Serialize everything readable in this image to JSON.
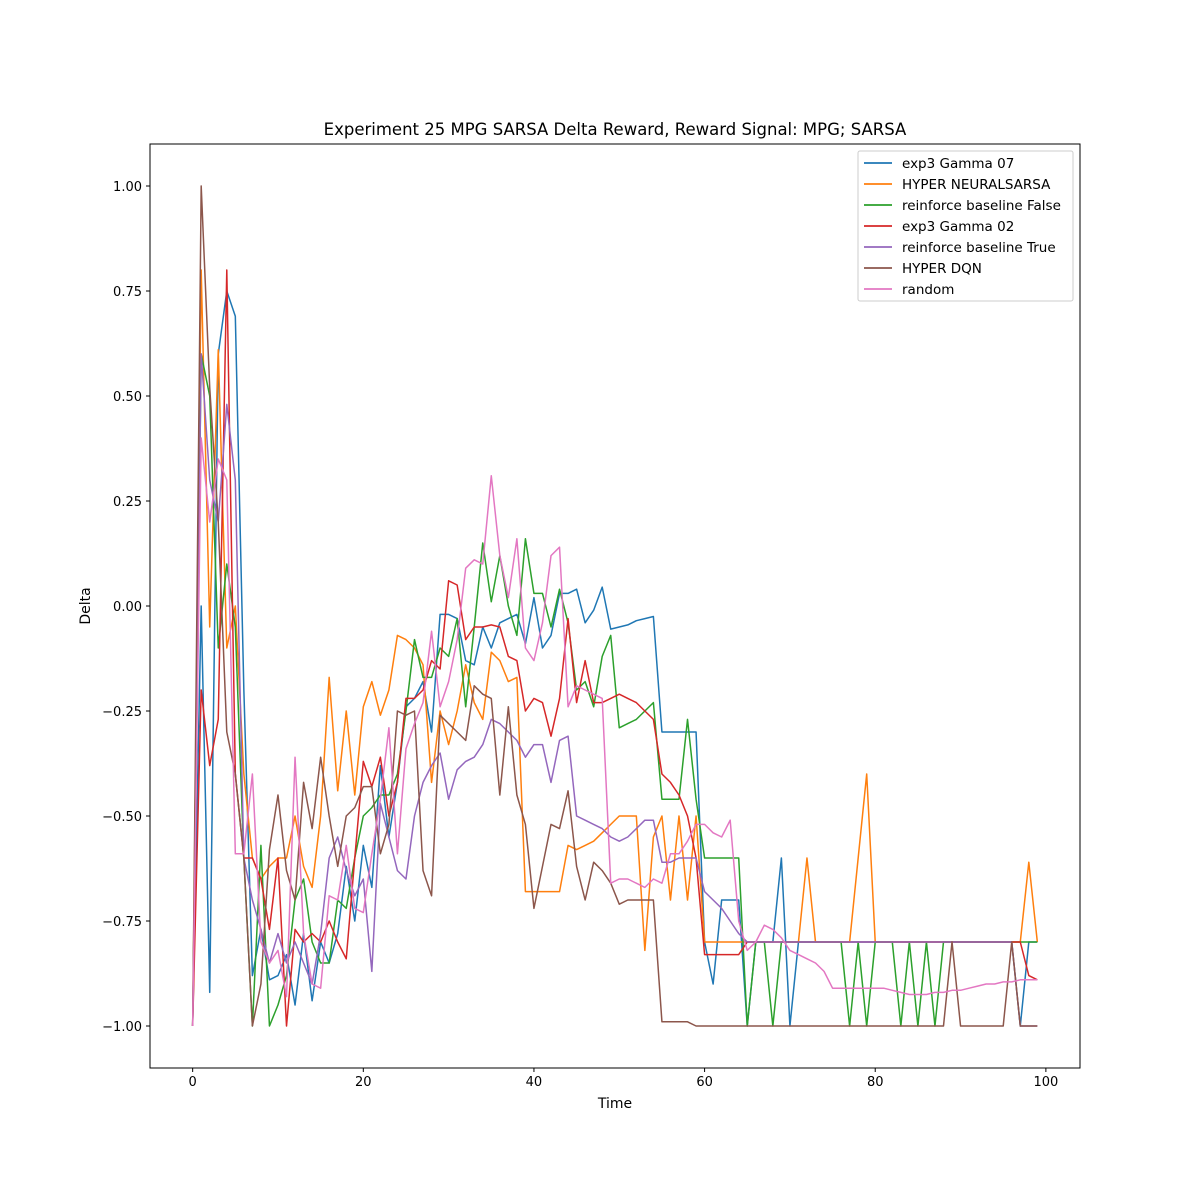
{
  "chart_data": {
    "type": "line",
    "title": "Experiment 25 MPG SARSA Delta Reward,  Reward Signal: MPG; SARSA",
    "xlabel": "Time",
    "ylabel": "Delta",
    "xlim": [
      -5,
      104
    ],
    "ylim": [
      -1.1,
      1.1
    ],
    "xticks": [
      0,
      20,
      40,
      60,
      80,
      100
    ],
    "xtick_labels": [
      "0",
      "20",
      "40",
      "60",
      "80",
      "100"
    ],
    "yticks": [
      -1.0,
      -0.75,
      -0.5,
      -0.25,
      0.0,
      0.25,
      0.5,
      0.75,
      1.0
    ],
    "ytick_labels": [
      "−1.00",
      "−0.75",
      "−0.50",
      "−0.25",
      "0.00",
      "0.25",
      "0.50",
      "0.75",
      "1.00"
    ],
    "grid": false,
    "legend_position": "top-right",
    "series": [
      {
        "name": "exp3 Gamma 07",
        "color": "#1f77b4",
        "values": [
          -1.0,
          0.0,
          -0.92,
          0.6,
          0.75,
          0.69,
          -0.2,
          -0.88,
          -0.77,
          -0.89,
          -0.88,
          -0.83,
          -0.95,
          -0.78,
          -0.94,
          -0.8,
          -0.85,
          -0.78,
          -0.62,
          -0.75,
          -0.57,
          -0.67,
          -0.38,
          -0.55,
          -0.42,
          -0.24,
          -0.22,
          -0.18,
          -0.3,
          -0.02,
          -0.02,
          -0.03,
          -0.13,
          -0.14,
          -0.05,
          -0.1,
          -0.04,
          -0.03,
          -0.02,
          -0.09,
          0.02,
          -0.1,
          -0.07,
          0.03,
          0.03,
          0.04,
          -0.04,
          -0.01,
          0.045,
          -0.055,
          -0.05,
          -0.045,
          -0.035,
          -0.03,
          -0.025,
          -0.3,
          -0.3,
          -0.3,
          -0.3,
          -0.3,
          -0.8,
          -0.9,
          -0.7,
          -0.7,
          -0.7,
          -1.0,
          -0.8,
          -0.8,
          -0.8,
          -0.6,
          -1.0,
          -0.8,
          -0.8,
          -0.8,
          -0.8,
          -0.8,
          -0.8,
          -0.8,
          -0.8,
          -0.8,
          -0.8,
          -0.8,
          -0.8,
          -0.8,
          -0.8,
          -0.8,
          -0.8,
          -0.8,
          -0.8,
          -0.8,
          -0.8,
          -0.8,
          -0.8,
          -0.8,
          -0.8,
          -0.8,
          -0.8,
          -1.0,
          -0.8,
          -0.8
        ]
      },
      {
        "name": "HYPER NEURALSARSA",
        "color": "#ff7f0e",
        "values": [
          -1.0,
          0.8,
          -0.05,
          0.61,
          -0.1,
          0.0,
          -0.4,
          -0.6,
          -0.65,
          -0.62,
          -0.6,
          -0.6,
          -0.5,
          -0.62,
          -0.67,
          -0.5,
          -0.17,
          -0.44,
          -0.25,
          -0.45,
          -0.24,
          -0.18,
          -0.26,
          -0.2,
          -0.07,
          -0.08,
          -0.1,
          -0.14,
          -0.42,
          -0.25,
          -0.33,
          -0.25,
          -0.14,
          -0.23,
          -0.27,
          -0.11,
          -0.13,
          -0.18,
          -0.17,
          -0.68,
          -0.68,
          -0.68,
          -0.68,
          -0.68,
          -0.57,
          -0.58,
          -0.57,
          -0.56,
          -0.54,
          -0.52,
          -0.5,
          -0.5,
          -0.5,
          -0.82,
          -0.55,
          -0.5,
          -0.7,
          -0.5,
          -0.7,
          -0.5,
          -0.8,
          -0.8,
          -0.8,
          -0.8,
          -0.8,
          -0.8,
          -0.8,
          -0.8,
          -0.8,
          -0.8,
          -0.8,
          -0.8,
          -0.6,
          -0.8,
          -0.8,
          -0.8,
          -0.8,
          -0.8,
          -0.6,
          -0.4,
          -0.8,
          -0.8,
          -0.8,
          -0.8,
          -0.8,
          -0.8,
          -0.8,
          -0.8,
          -0.8,
          -0.8,
          -0.8,
          -0.8,
          -0.8,
          -0.8,
          -0.8,
          -0.8,
          -0.8,
          -0.8,
          -0.61,
          -0.8
        ]
      },
      {
        "name": "reinforce baseline False",
        "color": "#2ca02c",
        "values": [
          -1.0,
          0.6,
          0.5,
          -0.1,
          0.1,
          -0.05,
          -0.6,
          -1.0,
          -0.57,
          -1.0,
          -0.95,
          -0.88,
          -0.7,
          -0.65,
          -0.8,
          -0.85,
          -0.85,
          -0.7,
          -0.72,
          -0.6,
          -0.5,
          -0.48,
          -0.45,
          -0.45,
          -0.4,
          -0.25,
          -0.08,
          -0.17,
          -0.17,
          -0.1,
          -0.12,
          -0.03,
          -0.24,
          -0.05,
          0.15,
          0.01,
          0.12,
          0.0,
          -0.07,
          0.16,
          0.03,
          0.03,
          -0.05,
          0.04,
          -0.04,
          -0.2,
          -0.18,
          -0.24,
          -0.12,
          -0.07,
          -0.29,
          -0.28,
          -0.27,
          -0.25,
          -0.23,
          -0.46,
          -0.46,
          -0.46,
          -0.27,
          -0.46,
          -0.6,
          -0.6,
          -0.6,
          -0.6,
          -0.6,
          -1.0,
          -0.8,
          -0.8,
          -1.0,
          -0.8,
          -0.8,
          -0.8,
          -0.8,
          -0.8,
          -0.8,
          -0.8,
          -0.8,
          -1.0,
          -0.8,
          -1.0,
          -0.8,
          -0.8,
          -0.8,
          -1.0,
          -0.8,
          -1.0,
          -0.8,
          -1.0,
          -0.8,
          -0.8,
          -0.8,
          -0.8,
          -0.8,
          -0.8,
          -0.8,
          -0.8,
          -0.8,
          -0.8,
          -0.8,
          -0.8
        ]
      },
      {
        "name": "exp3 Gamma 02",
        "color": "#d62728",
        "values": [
          -1.0,
          -0.2,
          -0.38,
          -0.27,
          0.8,
          -0.4,
          -0.6,
          -0.6,
          -0.65,
          -0.77,
          -0.6,
          -1.0,
          -0.77,
          -0.8,
          -0.78,
          -0.8,
          -0.75,
          -0.8,
          -0.84,
          -0.6,
          -0.37,
          -0.43,
          -0.36,
          -0.5,
          -0.42,
          -0.22,
          -0.22,
          -0.2,
          -0.13,
          -0.15,
          0.06,
          0.05,
          -0.08,
          -0.05,
          -0.05,
          -0.045,
          -0.05,
          -0.12,
          -0.13,
          -0.25,
          -0.22,
          -0.23,
          -0.31,
          -0.22,
          -0.03,
          -0.23,
          -0.13,
          -0.23,
          -0.23,
          -0.22,
          -0.21,
          -0.22,
          -0.23,
          -0.25,
          -0.27,
          -0.4,
          -0.42,
          -0.45,
          -0.5,
          -0.6,
          -0.83,
          -0.83,
          -0.83,
          -0.83,
          -0.83,
          -0.8,
          -0.8,
          -0.8,
          -0.8,
          -0.8,
          -0.8,
          -0.8,
          -0.8,
          -0.8,
          -0.8,
          -0.8,
          -0.8,
          -0.8,
          -0.8,
          -0.8,
          -0.8,
          -0.8,
          -0.8,
          -0.8,
          -0.8,
          -0.8,
          -0.8,
          -0.8,
          -0.8,
          -0.8,
          -0.8,
          -0.8,
          -0.8,
          -0.8,
          -0.8,
          -0.8,
          -0.8,
          -0.8,
          -0.88,
          -0.89
        ]
      },
      {
        "name": "reinforce baseline True",
        "color": "#9467bd",
        "values": [
          -1.0,
          0.6,
          0.3,
          0.2,
          0.48,
          0.3,
          -0.6,
          -0.7,
          -0.77,
          -0.85,
          -0.78,
          -0.85,
          -0.8,
          -0.85,
          -0.9,
          -0.78,
          -0.6,
          -0.55,
          -0.63,
          -0.69,
          -0.65,
          -0.87,
          -0.47,
          -0.55,
          -0.63,
          -0.65,
          -0.5,
          -0.42,
          -0.38,
          -0.35,
          -0.46,
          -0.39,
          -0.37,
          -0.36,
          -0.33,
          -0.27,
          -0.28,
          -0.3,
          -0.32,
          -0.36,
          -0.33,
          -0.33,
          -0.42,
          -0.32,
          -0.31,
          -0.5,
          -0.51,
          -0.52,
          -0.53,
          -0.55,
          -0.56,
          -0.55,
          -0.53,
          -0.51,
          -0.51,
          -0.61,
          -0.61,
          -0.6,
          -0.6,
          -0.6,
          -0.68,
          -0.7,
          -0.72,
          -0.75,
          -0.78,
          -0.8,
          -0.8,
          -0.8,
          -0.8,
          -0.8,
          -0.8,
          -0.8,
          -0.8,
          -0.8,
          -0.8,
          -0.8,
          -0.8,
          -0.8,
          -0.8,
          -0.8,
          -0.8,
          -0.8,
          -0.8,
          -0.8,
          -0.8,
          -0.8,
          -0.8,
          -0.8,
          -0.8,
          -0.8,
          -0.8,
          -0.8,
          -0.8,
          -0.8,
          -0.8,
          -0.8,
          -0.8,
          -1.0,
          -1.0,
          -1.0
        ]
      },
      {
        "name": "HYPER DQN",
        "color": "#8c564b",
        "values": [
          -1.0,
          1.0,
          0.52,
          0.2,
          -0.3,
          -0.4,
          -0.6,
          -1.0,
          -0.9,
          -0.58,
          -0.45,
          -0.63,
          -0.7,
          -0.42,
          -0.53,
          -0.36,
          -0.5,
          -0.62,
          -0.5,
          -0.48,
          -0.43,
          -0.43,
          -0.59,
          -0.52,
          -0.25,
          -0.26,
          -0.25,
          -0.63,
          -0.69,
          -0.26,
          -0.28,
          -0.3,
          -0.32,
          -0.19,
          -0.21,
          -0.22,
          -0.45,
          -0.24,
          -0.45,
          -0.52,
          -0.72,
          -0.62,
          -0.52,
          -0.53,
          -0.44,
          -0.62,
          -0.7,
          -0.61,
          -0.63,
          -0.66,
          -0.71,
          -0.7,
          -0.7,
          -0.7,
          -0.7,
          -0.99,
          -0.99,
          -0.99,
          -0.99,
          -1.0,
          -1.0,
          -1.0,
          -1.0,
          -1.0,
          -1.0,
          -1.0,
          -1.0,
          -1.0,
          -1.0,
          -1.0,
          -1.0,
          -1.0,
          -1.0,
          -1.0,
          -1.0,
          -1.0,
          -1.0,
          -1.0,
          -1.0,
          -1.0,
          -1.0,
          -1.0,
          -1.0,
          -1.0,
          -1.0,
          -1.0,
          -1.0,
          -1.0,
          -1.0,
          -0.8,
          -1.0,
          -1.0,
          -1.0,
          -1.0,
          -1.0,
          -1.0,
          -0.8,
          -1.0,
          -1.0,
          -1.0
        ]
      },
      {
        "name": "random",
        "color": "#e377c2",
        "values": [
          -1.0,
          0.4,
          0.2,
          0.35,
          0.3,
          -0.59,
          -0.59,
          -0.4,
          -0.8,
          -0.85,
          -0.82,
          -0.93,
          -0.36,
          -0.78,
          -0.9,
          -0.91,
          -0.69,
          -0.7,
          -0.57,
          -0.72,
          -0.73,
          -0.59,
          -0.46,
          -0.29,
          -0.59,
          -0.34,
          -0.28,
          -0.23,
          -0.06,
          -0.24,
          -0.18,
          -0.08,
          0.09,
          0.11,
          0.1,
          0.31,
          0.12,
          0.02,
          0.16,
          -0.1,
          -0.13,
          -0.04,
          0.12,
          0.14,
          -0.24,
          -0.19,
          -0.2,
          -0.21,
          -0.22,
          -0.66,
          -0.65,
          -0.65,
          -0.66,
          -0.67,
          -0.65,
          -0.66,
          -0.59,
          -0.59,
          -0.56,
          -0.52,
          -0.52,
          -0.54,
          -0.55,
          -0.51,
          -0.75,
          -0.82,
          -0.8,
          -0.76,
          -0.77,
          -0.79,
          -0.82,
          -0.83,
          -0.84,
          -0.85,
          -0.87,
          -0.91,
          -0.91,
          -0.91,
          -0.91,
          -0.91,
          -0.91,
          -0.91,
          -0.915,
          -0.92,
          -0.925,
          -0.925,
          -0.925,
          -0.92,
          -0.92,
          -0.915,
          -0.915,
          -0.91,
          -0.905,
          -0.9,
          -0.9,
          -0.895,
          -0.895,
          -0.89,
          -0.89,
          -0.89
        ]
      }
    ]
  }
}
